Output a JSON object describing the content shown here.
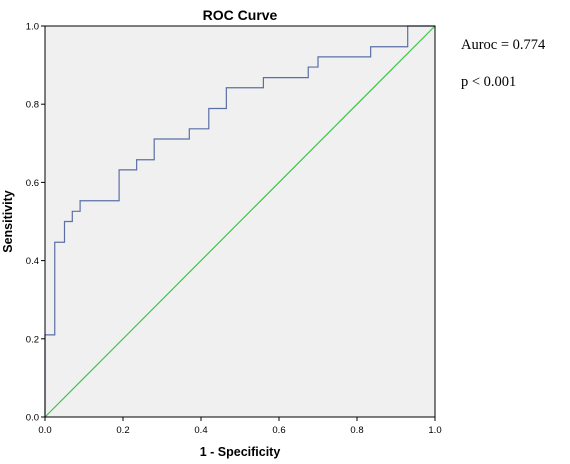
{
  "chart_data": {
    "type": "line",
    "title": "ROC Curve",
    "xlabel": "1 - Specificity",
    "ylabel": "Sensitivity",
    "xlim": [
      0,
      1
    ],
    "ylim": [
      0,
      1
    ],
    "xticks": [
      "0.0",
      "0.2",
      "0.4",
      "0.6",
      "0.8",
      "1.0"
    ],
    "yticks": [
      "0.0",
      "0.2",
      "0.4",
      "0.6",
      "0.8",
      "1.0"
    ],
    "grid": false,
    "background_color": "#f0f0f0",
    "series": [
      {
        "color": "#5b6fa6",
        "points": [
          [
            0.0,
            0.0
          ],
          [
            0.0,
            0.21
          ],
          [
            0.025,
            0.21
          ],
          [
            0.025,
            0.447
          ],
          [
            0.05,
            0.447
          ],
          [
            0.05,
            0.5
          ],
          [
            0.07,
            0.5
          ],
          [
            0.07,
            0.526
          ],
          [
            0.09,
            0.526
          ],
          [
            0.09,
            0.553
          ],
          [
            0.19,
            0.553
          ],
          [
            0.19,
            0.632
          ],
          [
            0.235,
            0.632
          ],
          [
            0.235,
            0.658
          ],
          [
            0.28,
            0.658
          ],
          [
            0.28,
            0.711
          ],
          [
            0.37,
            0.711
          ],
          [
            0.37,
            0.737
          ],
          [
            0.42,
            0.737
          ],
          [
            0.42,
            0.789
          ],
          [
            0.465,
            0.789
          ],
          [
            0.465,
            0.842
          ],
          [
            0.56,
            0.842
          ],
          [
            0.56,
            0.868
          ],
          [
            0.675,
            0.868
          ],
          [
            0.675,
            0.895
          ],
          [
            0.7,
            0.895
          ],
          [
            0.7,
            0.921
          ],
          [
            0.835,
            0.921
          ],
          [
            0.835,
            0.947
          ],
          [
            0.93,
            0.947
          ],
          [
            0.93,
            1.0
          ],
          [
            1.0,
            1.0
          ]
        ]
      },
      {
        "color": "#3cc44a",
        "points": [
          [
            0.0,
            0.0
          ],
          [
            1.0,
            1.0
          ]
        ]
      }
    ]
  },
  "annotations": {
    "auroc": "Auroc = 0.774",
    "p_value": "p < 0.001"
  }
}
